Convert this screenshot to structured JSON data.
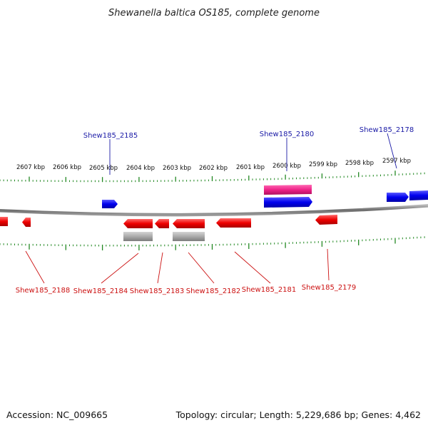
{
  "title": "Shewanella baltica OS185, complete genome",
  "footer": {
    "accession": "Accession: NC_009665",
    "stats": "Topology: circular; Length: 5,229,686 bp; Genes: 4,462"
  },
  "colors": {
    "forward_gene": "#0000ee",
    "reverse_gene": "#ee0000",
    "pseudo_gene": "#aaaaaa",
    "rna_feature": "#ee2288",
    "tick": "#228822",
    "backbone": "#7a7a7a",
    "forward_label": "#1a1aa6",
    "reverse_label": "#cc1111"
  },
  "ruler": {
    "unit": "kbp",
    "labels": [
      "2607 kbp",
      "2606 kbp",
      "2605 kbp",
      "2604 kbp",
      "2603 kbp",
      "2602 kbp",
      "2601 kbp",
      "2600 kbp",
      "2599 kbp",
      "2598 kbp",
      "2597 kbp"
    ]
  },
  "gene_labels": {
    "forward": [
      "Shew185_2185",
      "Shew185_2180",
      "Shew185_2178"
    ],
    "reverse": [
      "Shew185_2188",
      "Shew185_2184",
      "Shew185_2183",
      "Shew185_2182",
      "Shew185_2181",
      "Shew185_2179"
    ]
  }
}
